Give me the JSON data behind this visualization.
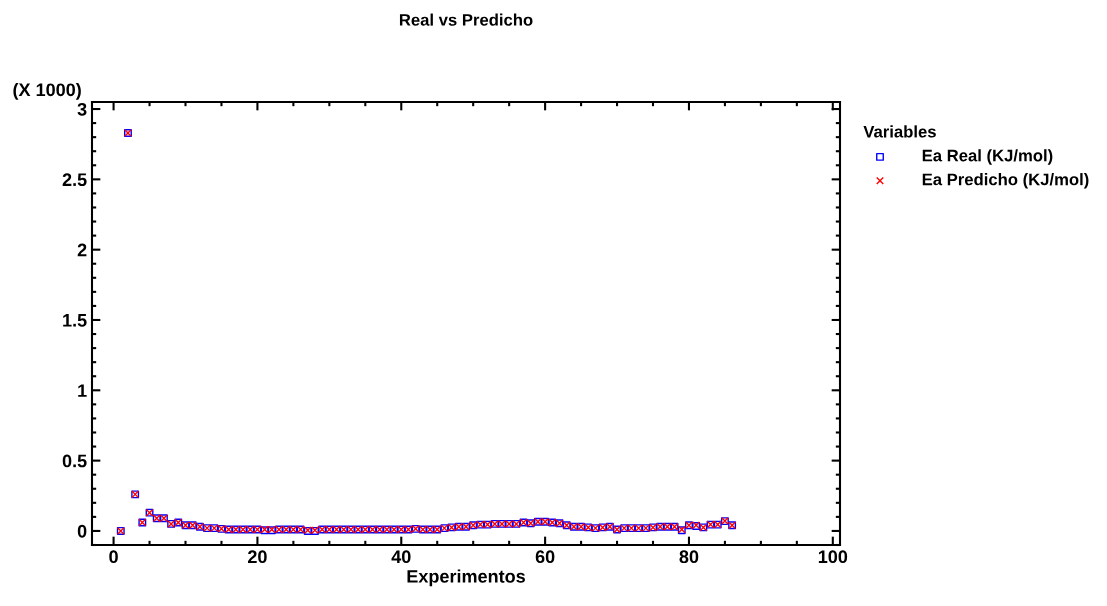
{
  "chart_data": {
    "type": "scatter",
    "title": "Real vs Predicho",
    "xlabel": "Experimentos",
    "ylabel": "(X 1000)",
    "legend_title": "Variables",
    "legend": "top right",
    "grid": false,
    "x": [
      1,
      2,
      3,
      4,
      5,
      6,
      7,
      8,
      9,
      10,
      11,
      12,
      13,
      14,
      15,
      16,
      17,
      18,
      19,
      20,
      21,
      22,
      23,
      24,
      25,
      26,
      27,
      28,
      29,
      30,
      31,
      32,
      33,
      34,
      35,
      36,
      37,
      38,
      39,
      40,
      41,
      42,
      43,
      44,
      45,
      46,
      47,
      48,
      49,
      50,
      51,
      52,
      53,
      54,
      55,
      56,
      57,
      58,
      59,
      60,
      61,
      62,
      63,
      64,
      65,
      66,
      67,
      68,
      69,
      70,
      71,
      72,
      73,
      74,
      75,
      76,
      77,
      78,
      79,
      80,
      81,
      82,
      83,
      84,
      85,
      86
    ],
    "xlim": [
      -3,
      101
    ],
    "xticks": [
      0,
      20,
      40,
      60,
      80,
      100
    ],
    "ylim": [
      -0.1,
      3.05
    ],
    "yticks": [
      0,
      0.5,
      1,
      1.5,
      2,
      2.5,
      3
    ],
    "series": [
      {
        "name": "Ea Real (KJ/mol)",
        "color": "#0000ff",
        "marker": "square",
        "values": [
          0.0,
          2.83,
          0.26,
          0.06,
          0.13,
          0.09,
          0.09,
          0.05,
          0.06,
          0.04,
          0.04,
          0.03,
          0.02,
          0.02,
          0.015,
          0.01,
          0.01,
          0.01,
          0.01,
          0.01,
          0.005,
          0.005,
          0.01,
          0.01,
          0.01,
          0.01,
          0.0,
          0.0,
          0.01,
          0.01,
          0.01,
          0.01,
          0.01,
          0.01,
          0.01,
          0.01,
          0.01,
          0.01,
          0.01,
          0.01,
          0.01,
          0.015,
          0.01,
          0.01,
          0.01,
          0.02,
          0.025,
          0.03,
          0.03,
          0.04,
          0.045,
          0.045,
          0.05,
          0.05,
          0.05,
          0.05,
          0.06,
          0.055,
          0.065,
          0.065,
          0.06,
          0.055,
          0.04,
          0.03,
          0.03,
          0.025,
          0.02,
          0.025,
          0.03,
          0.01,
          0.02,
          0.02,
          0.02,
          0.02,
          0.025,
          0.03,
          0.03,
          0.03,
          0.005,
          0.04,
          0.035,
          0.025,
          0.045,
          0.045,
          0.07,
          0.04
        ]
      },
      {
        "name": "Ea Predicho (KJ/mol)",
        "color": "#ff0000",
        "marker": "cross",
        "values": [
          0.0,
          2.83,
          0.26,
          0.06,
          0.13,
          0.09,
          0.09,
          0.05,
          0.06,
          0.04,
          0.04,
          0.03,
          0.02,
          0.02,
          0.015,
          0.01,
          0.01,
          0.01,
          0.01,
          0.01,
          0.01,
          0.01,
          0.01,
          0.01,
          0.01,
          0.01,
          0.005,
          0.005,
          0.01,
          0.01,
          0.01,
          0.01,
          0.01,
          0.01,
          0.01,
          0.01,
          0.01,
          0.01,
          0.01,
          0.01,
          0.01,
          0.015,
          0.01,
          0.01,
          0.01,
          0.02,
          0.025,
          0.03,
          0.03,
          0.04,
          0.045,
          0.045,
          0.05,
          0.05,
          0.05,
          0.05,
          0.06,
          0.055,
          0.065,
          0.065,
          0.06,
          0.055,
          0.04,
          0.03,
          0.03,
          0.025,
          0.02,
          0.025,
          0.03,
          0.01,
          0.02,
          0.02,
          0.02,
          0.02,
          0.025,
          0.03,
          0.03,
          0.03,
          0.01,
          0.04,
          0.04,
          0.025,
          0.045,
          0.045,
          0.07,
          0.04
        ]
      }
    ]
  }
}
